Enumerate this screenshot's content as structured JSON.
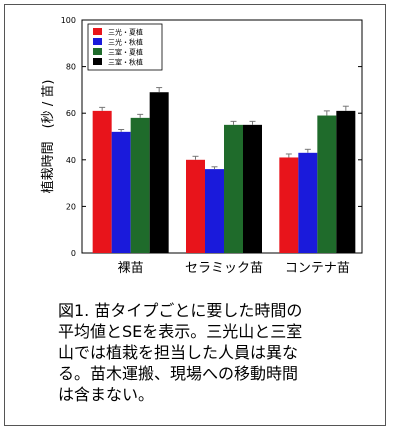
{
  "chart_data": {
    "type": "bar",
    "ylabel": "植栽時間　(秒 / 苗)",
    "ylim": [
      0,
      100
    ],
    "yticks": [
      0,
      20,
      40,
      60,
      80,
      100
    ],
    "categories": [
      "裸苗",
      "セラミック苗",
      "コンテナ苗"
    ],
    "series": [
      {
        "name": "三光・夏植",
        "color": "#e8141b",
        "values": [
          61,
          40,
          41
        ]
      },
      {
        "name": "三光・秋植",
        "color": "#1a1adb",
        "values": [
          52,
          36,
          43
        ]
      },
      {
        "name": "三室・夏植",
        "color": "#1f6b2b",
        "values": [
          58,
          55,
          59
        ]
      },
      {
        "name": "三室・秋植",
        "color": "#000000",
        "values": [
          69,
          55,
          61
        ]
      }
    ],
    "errors": [
      [
        1.5,
        1.5,
        1.5
      ],
      [
        1.0,
        1.0,
        1.5
      ],
      [
        1.5,
        1.5,
        2.0
      ],
      [
        2.0,
        1.5,
        2.0
      ]
    ],
    "legend_position": "top-left"
  },
  "caption": [
    "図1.  苗タイプごとに要した時間の",
    "平均値とSEを表示。三光山と三室",
    "山では植栽を担当した人員は異な",
    "る。苗木運搬、現場への移動時間",
    "は含まない。"
  ]
}
